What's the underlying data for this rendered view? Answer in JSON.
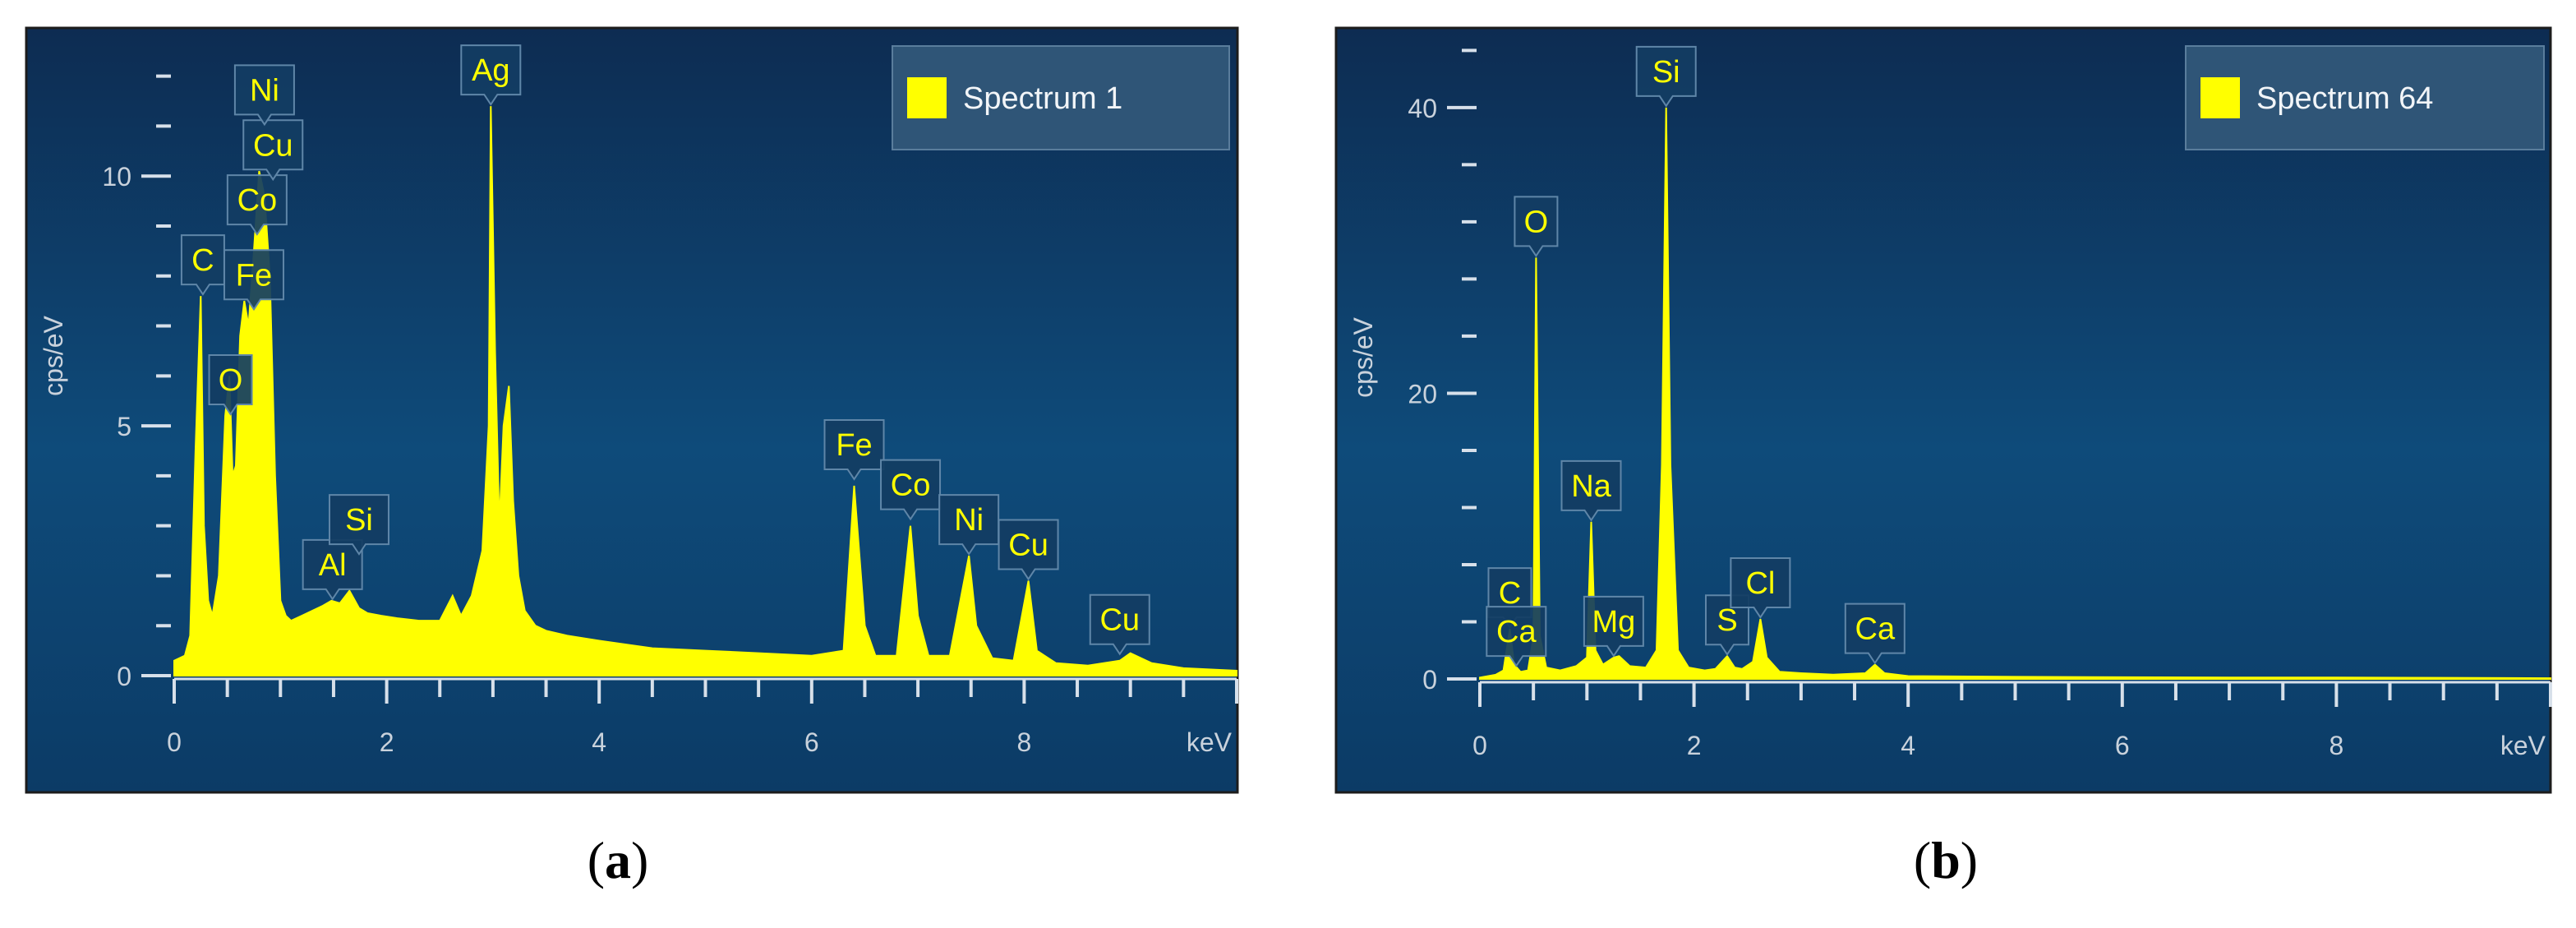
{
  "colors": {
    "panel_bg_top": "#0d2f55",
    "panel_bg_mid": "#0e4a78",
    "panel_border": "#1c1c1c",
    "axis": "#d7e0ea",
    "tick_text": "#c9d2dc",
    "spectrum": "#ffff00",
    "label_text": "#ffff00",
    "label_box_bg": "#123d63",
    "label_box_border": "#5f86a8",
    "legend_bg": "#2f5577"
  },
  "chart_data": [
    {
      "type": "area",
      "panel_caption": "a",
      "legend": "Spectrum 1",
      "legend_position": "top-right",
      "ylabel": "cps/eV",
      "x_unit_label": "keV",
      "xlim": [
        0,
        10
      ],
      "ylim": [
        0,
        12.8
      ],
      "x_ticks": [
        0,
        2,
        4,
        6,
        8
      ],
      "y_ticks": [
        0,
        5,
        10
      ],
      "grid": false,
      "series": [
        {
          "x": [
            0.0,
            0.1,
            0.15,
            0.2,
            0.25,
            0.28,
            0.32,
            0.36,
            0.42,
            0.48,
            0.52,
            0.55,
            0.58,
            0.62,
            0.66,
            0.7,
            0.75,
            0.8,
            0.85,
            0.9,
            0.95,
            1.0,
            1.05,
            1.1,
            1.2,
            1.3,
            1.4,
            1.48,
            1.56,
            1.65,
            1.74,
            1.82,
            1.95,
            2.1,
            2.3,
            2.5,
            2.62,
            2.7,
            2.8,
            2.9,
            2.96,
            2.98,
            3.02,
            3.06,
            3.1,
            3.15,
            3.19,
            3.24,
            3.3,
            3.4,
            3.5,
            3.7,
            4.0,
            4.5,
            5.0,
            5.5,
            6.0,
            6.3,
            6.4,
            6.5,
            6.6,
            6.8,
            6.93,
            7.0,
            7.1,
            7.3,
            7.48,
            7.55,
            7.7,
            7.9,
            8.04,
            8.12,
            8.3,
            8.6,
            8.9,
            9.0,
            9.2,
            9.5,
            9.8,
            10.0
          ],
          "y": [
            0.3,
            0.4,
            0.8,
            4.5,
            7.6,
            3.0,
            1.5,
            1.2,
            2.0,
            5.2,
            6.0,
            4.0,
            4.2,
            6.8,
            7.5,
            7.0,
            8.5,
            10.1,
            9.6,
            8.0,
            4.0,
            1.5,
            1.2,
            1.1,
            1.2,
            1.3,
            1.4,
            1.5,
            1.45,
            1.7,
            1.35,
            1.25,
            1.2,
            1.15,
            1.1,
            1.1,
            1.6,
            1.2,
            1.6,
            2.5,
            5.0,
            11.4,
            6.5,
            3.0,
            5.0,
            5.8,
            3.5,
            2.0,
            1.3,
            1.0,
            0.9,
            0.8,
            0.7,
            0.55,
            0.5,
            0.45,
            0.4,
            0.5,
            3.8,
            1.0,
            0.4,
            0.4,
            3.0,
            1.2,
            0.4,
            0.4,
            2.4,
            1.0,
            0.35,
            0.3,
            1.9,
            0.5,
            0.25,
            0.2,
            0.3,
            0.45,
            0.25,
            0.15,
            0.12,
            0.1
          ]
        }
      ],
      "annotations": [
        {
          "text": "C",
          "x": 0.27,
          "y": 7.6
        },
        {
          "text": "O",
          "x": 0.53,
          "y": 5.2
        },
        {
          "text": "Fe",
          "x": 0.75,
          "y": 7.3
        },
        {
          "text": "Co",
          "x": 0.78,
          "y": 8.8
        },
        {
          "text": "Cu",
          "x": 0.93,
          "y": 9.9
        },
        {
          "text": "Ni",
          "x": 0.85,
          "y": 11.0
        },
        {
          "text": "Al",
          "x": 1.49,
          "y": 1.5
        },
        {
          "text": "Si",
          "x": 1.74,
          "y": 2.4
        },
        {
          "text": "Ag",
          "x": 2.98,
          "y": 11.4
        },
        {
          "text": "Fe",
          "x": 6.4,
          "y": 3.9
        },
        {
          "text": "Co",
          "x": 6.93,
          "y": 3.1
        },
        {
          "text": "Ni",
          "x": 7.48,
          "y": 2.4
        },
        {
          "text": "Cu",
          "x": 8.04,
          "y": 1.9
        },
        {
          "text": "Cu",
          "x": 8.9,
          "y": 0.4
        }
      ]
    },
    {
      "type": "area",
      "panel_caption": "b",
      "legend": "Spectrum 64",
      "legend_position": "top-right",
      "ylabel": "cps/eV",
      "x_unit_label": "keV",
      "xlim": [
        0,
        10
      ],
      "ylim": [
        0,
        45
      ],
      "x_ticks": [
        0,
        2,
        4,
        6,
        8
      ],
      "y_ticks": [
        0,
        20,
        40
      ],
      "grid": false,
      "series": [
        {
          "x": [
            0.0,
            0.15,
            0.22,
            0.28,
            0.32,
            0.38,
            0.45,
            0.5,
            0.525,
            0.56,
            0.62,
            0.75,
            0.9,
            1.0,
            1.04,
            1.08,
            1.15,
            1.25,
            1.3,
            1.4,
            1.55,
            1.65,
            1.7,
            1.74,
            1.78,
            1.85,
            1.95,
            2.1,
            2.2,
            2.31,
            2.38,
            2.45,
            2.55,
            2.62,
            2.68,
            2.8,
            3.0,
            3.3,
            3.6,
            3.69,
            3.78,
            4.0,
            5.0,
            6.0,
            7.0,
            8.0,
            9.0,
            10.0
          ],
          "y": [
            0.1,
            0.3,
            0.6,
            3.5,
            1.0,
            0.5,
            0.6,
            3.0,
            29.5,
            3.0,
            0.8,
            0.6,
            0.9,
            1.5,
            11.0,
            2.0,
            1.0,
            1.5,
            1.6,
            0.9,
            0.8,
            2.0,
            15.0,
            40.0,
            15.0,
            2.0,
            0.8,
            0.6,
            0.7,
            1.6,
            0.8,
            0.7,
            1.2,
            4.2,
            1.5,
            0.5,
            0.4,
            0.3,
            0.4,
            1.0,
            0.4,
            0.2,
            0.15,
            0.12,
            0.1,
            0.1,
            0.08,
            0.05
          ]
        }
      ],
      "annotations": [
        {
          "text": "C",
          "x": 0.28,
          "y": 3.5
        },
        {
          "text": "Ca",
          "x": 0.34,
          "y": 0.8
        },
        {
          "text": "O",
          "x": 0.525,
          "y": 29.5
        },
        {
          "text": "Na",
          "x": 1.04,
          "y": 11.0
        },
        {
          "text": "Mg",
          "x": 1.25,
          "y": 1.5
        },
        {
          "text": "Si",
          "x": 1.74,
          "y": 40.0
        },
        {
          "text": "S",
          "x": 2.31,
          "y": 1.6
        },
        {
          "text": "Cl",
          "x": 2.62,
          "y": 4.2
        },
        {
          "text": "Ca",
          "x": 3.69,
          "y": 1.0
        }
      ]
    }
  ]
}
